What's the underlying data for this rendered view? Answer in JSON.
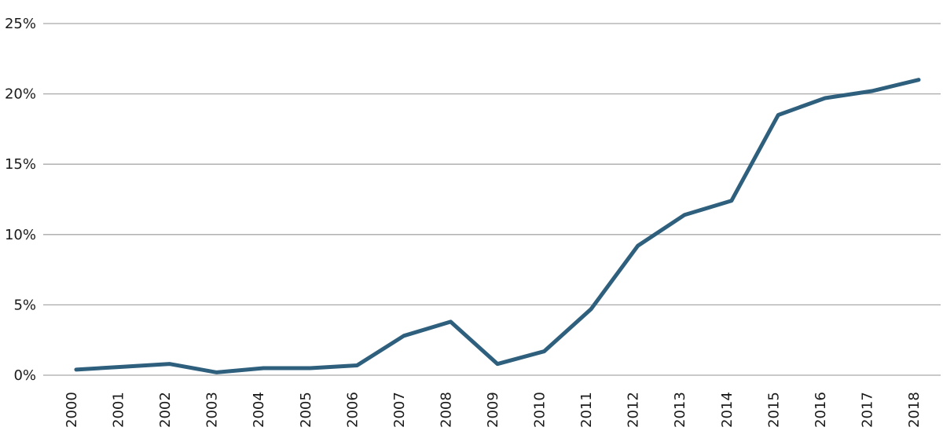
{
  "chart_data": {
    "type": "line",
    "title": "",
    "xlabel": "",
    "ylabel": "",
    "categories": [
      "2000",
      "2001",
      "2002",
      "2003",
      "2004",
      "2005",
      "2006",
      "2007",
      "2008",
      "2009",
      "2010",
      "2011",
      "2012",
      "2013",
      "2014",
      "2015",
      "2016",
      "2017",
      "2018"
    ],
    "values": [
      0.4,
      0.6,
      0.8,
      0.2,
      0.5,
      0.5,
      0.7,
      2.8,
      3.8,
      0.8,
      1.7,
      4.7,
      9.2,
      11.4,
      12.4,
      18.5,
      19.7,
      20.2,
      21.0
    ],
    "ylim": [
      0,
      25
    ],
    "yticks": [
      0,
      5,
      10,
      15,
      20,
      25
    ],
    "ytick_labels": [
      "0%",
      "5%",
      "10%",
      "15%",
      "20%",
      "25%"
    ],
    "grid": "horizontal",
    "legend": "none",
    "line_color": "#2e5f7d",
    "grid_color": "#a9a9a9",
    "text_color": "#1a1a1a"
  }
}
